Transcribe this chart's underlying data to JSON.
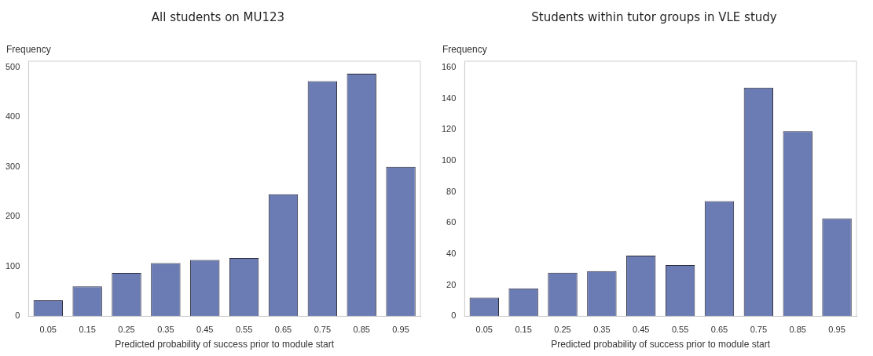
{
  "chart_data": [
    {
      "type": "bar",
      "title": "All students on MU123",
      "xlabel": "Predicted probability of success prior to module start",
      "ylabel": "Frequency",
      "categories": [
        "0.05",
        "0.15",
        "0.25",
        "0.35",
        "0.45",
        "0.55",
        "0.65",
        "0.75",
        "0.85",
        "0.95"
      ],
      "values": [
        32,
        60,
        87,
        107,
        113,
        117,
        245,
        472,
        487,
        300
      ],
      "color": "#6b7bb3",
      "ylim": [
        0,
        512
      ],
      "yticks": [
        0,
        100,
        200,
        300,
        400,
        500
      ],
      "grid": false,
      "legend": false
    },
    {
      "type": "bar",
      "title": "Students within tutor groups in VLE study",
      "xlabel": "Predicted probability of success prior to module start",
      "ylabel": "Frequency",
      "categories": [
        "0.05",
        "0.15",
        "0.25",
        "0.35",
        "0.45",
        "0.55",
        "0.65",
        "0.75",
        "0.85",
        "0.95"
      ],
      "values": [
        12,
        18,
        28,
        29,
        39,
        33,
        74,
        147,
        119,
        63
      ],
      "color": "#6b7bb3",
      "ylim": [
        0,
        164
      ],
      "yticks": [
        0,
        20,
        40,
        60,
        80,
        100,
        120,
        140,
        160
      ],
      "grid": false,
      "legend": false
    }
  ]
}
